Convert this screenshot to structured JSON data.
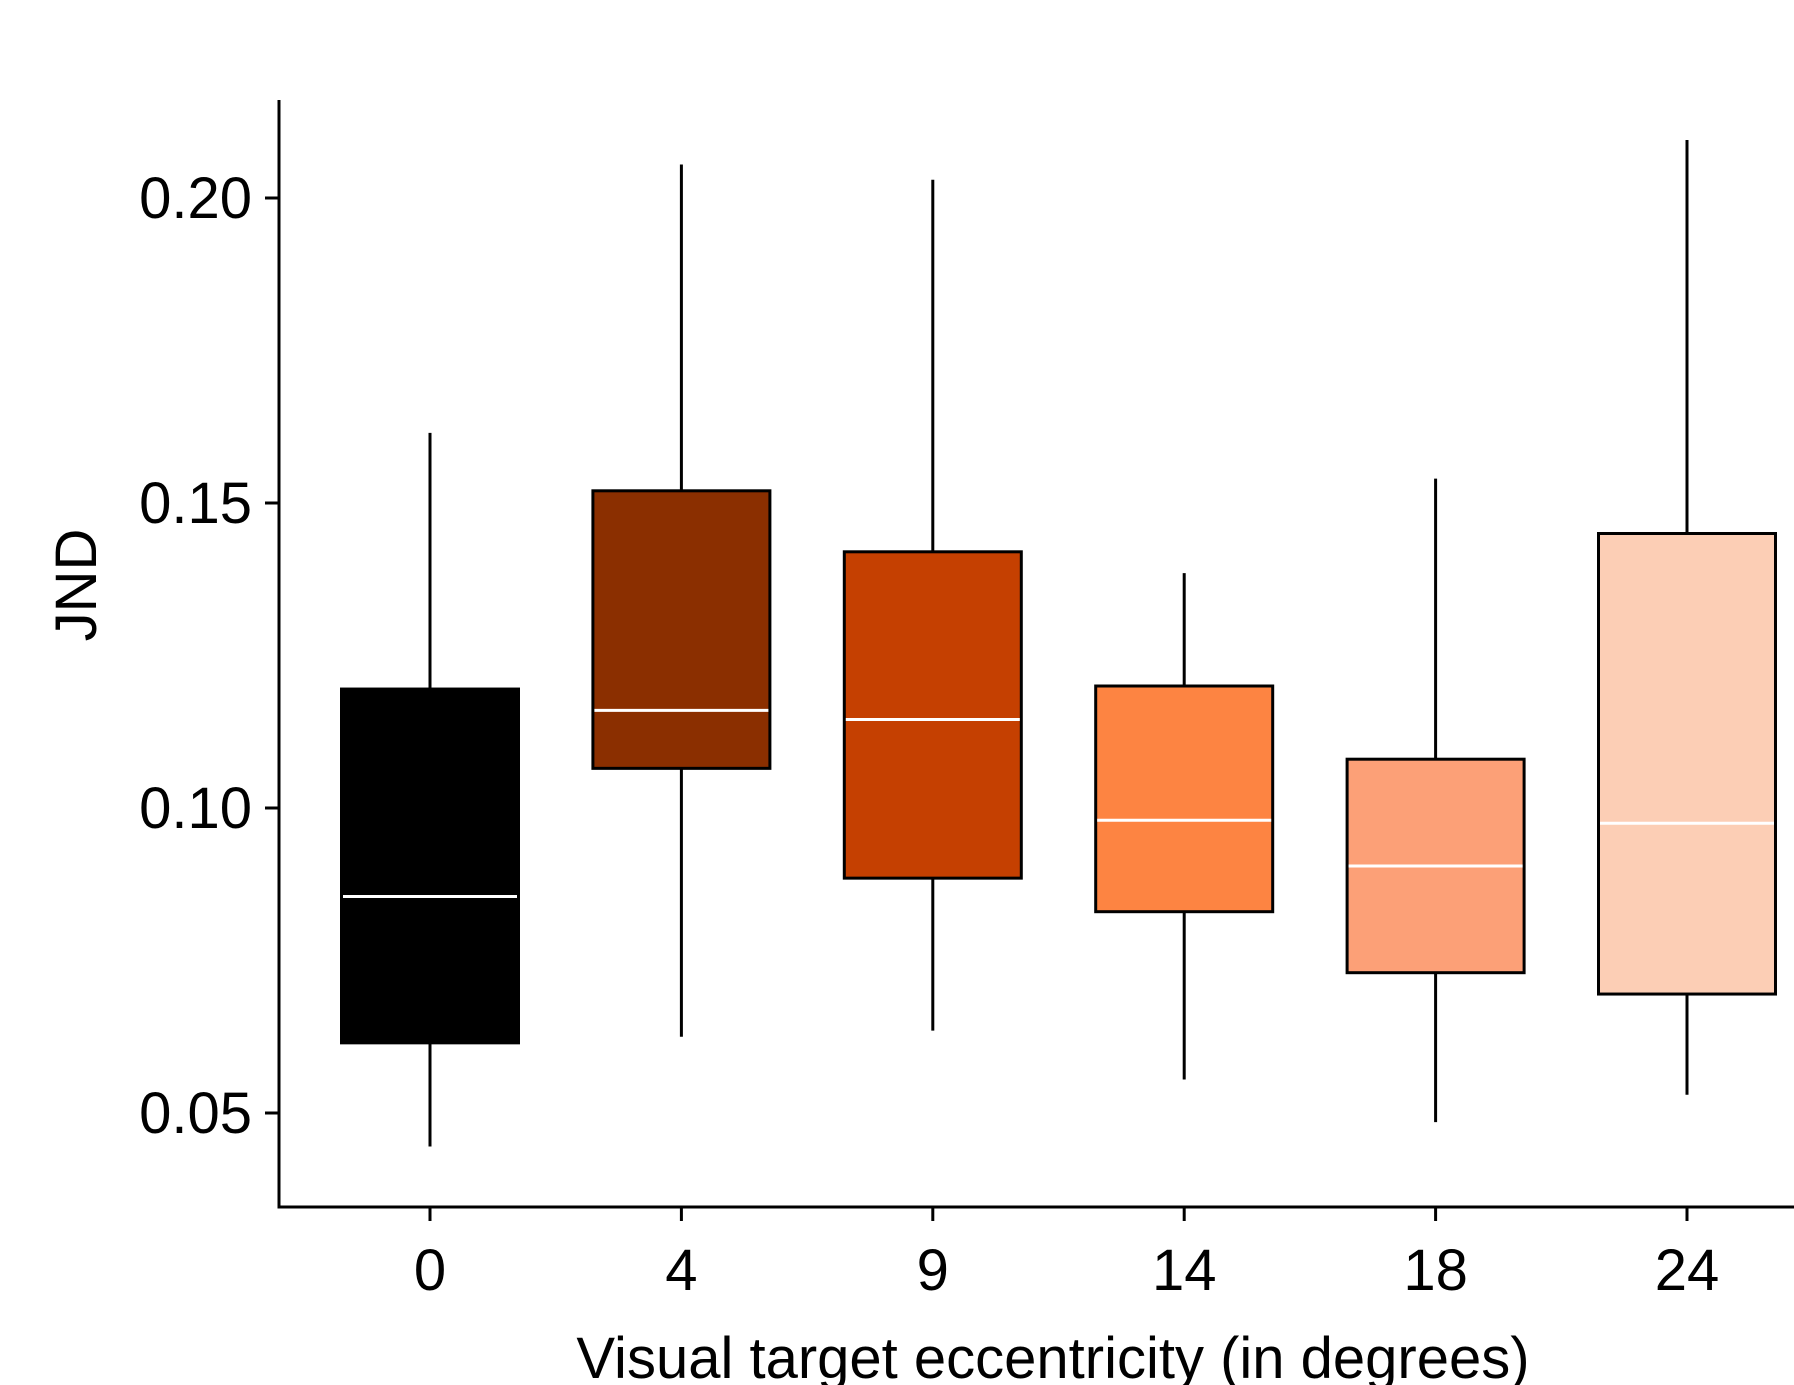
{
  "chart_data": {
    "type": "boxplot",
    "xlabel": "Visual target eccentricity (in degrees)",
    "ylabel": "JND",
    "categories": [
      "0",
      "4",
      "9",
      "14",
      "18",
      "24"
    ],
    "ylim": [
      0.0345,
      0.2175
    ],
    "yticks": [
      {
        "value": 0.05,
        "label": "0.05"
      },
      {
        "value": 0.1,
        "label": "0.10"
      },
      {
        "value": 0.15,
        "label": "0.15"
      },
      {
        "value": 0.2,
        "label": "0.20"
      }
    ],
    "boxes": [
      {
        "category": "0",
        "whisker_low": 0.0445,
        "q1": 0.0615,
        "median": 0.0855,
        "q3": 0.1195,
        "whisker_high": 0.1615,
        "color": "#000000"
      },
      {
        "category": "4",
        "whisker_low": 0.0625,
        "q1": 0.1065,
        "median": 0.116,
        "q3": 0.152,
        "whisker_high": 0.2055,
        "color": "#8B2F00"
      },
      {
        "category": "9",
        "whisker_low": 0.0635,
        "q1": 0.0885,
        "median": 0.1145,
        "q3": 0.142,
        "whisker_high": 0.203,
        "color": "#C54001"
      },
      {
        "category": "14",
        "whisker_low": 0.0555,
        "q1": 0.083,
        "median": 0.098,
        "q3": 0.12,
        "whisker_high": 0.1385,
        "color": "#FD8442"
      },
      {
        "category": "18",
        "whisker_low": 0.0485,
        "q1": 0.073,
        "median": 0.0905,
        "q3": 0.108,
        "whisker_high": 0.154,
        "color": "#FCA077"
      },
      {
        "category": "24",
        "whisker_low": 0.053,
        "q1": 0.0695,
        "median": 0.0975,
        "q3": 0.145,
        "whisker_high": 0.2095,
        "color": "#FCCEB5"
      }
    ],
    "grid": false,
    "legend": "none"
  }
}
